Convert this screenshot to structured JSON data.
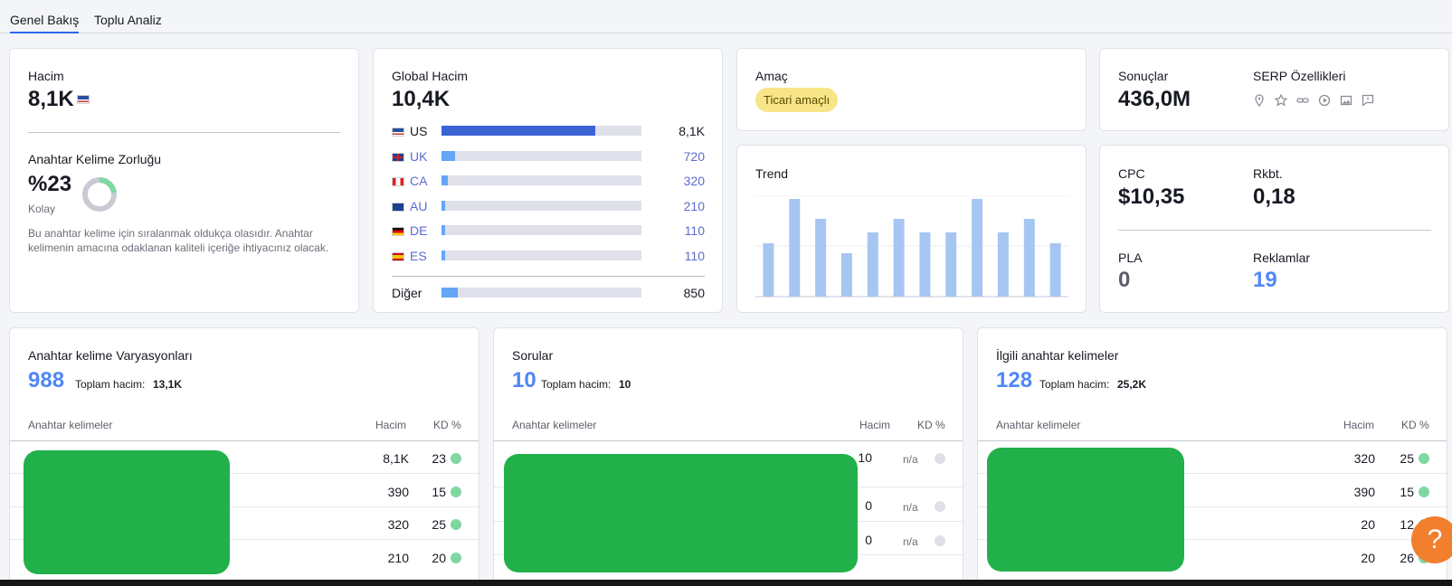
{
  "tabs": [
    {
      "label": "Genel Bakış"
    },
    {
      "label": "Toplu Analiz"
    }
  ],
  "volume": {
    "label": "Hacim",
    "value": "8,1K",
    "flag": "us-flag-icon"
  },
  "difficulty": {
    "label": "Anahtar Kelime Zorluğu",
    "value": "%23",
    "level": "Kolay",
    "description": "Bu anahtar kelime için sıralanmak oldukça olasıdır. Anahtar kelimenin amacına odaklanan kaliteli içeriğe ihtiyacınız olacak.",
    "percent": 23
  },
  "global": {
    "label": "Global Hacim",
    "value": "10,4K",
    "countries": [
      {
        "code": "US",
        "value": "8,1K",
        "share": 0.77
      },
      {
        "code": "UK",
        "value": "720",
        "share": 0.07
      },
      {
        "code": "CA",
        "value": "320",
        "share": 0.03
      },
      {
        "code": "AU",
        "value": "210",
        "share": 0.02
      },
      {
        "code": "DE",
        "value": "110",
        "share": 0.01
      },
      {
        "code": "ES",
        "value": "110",
        "share": 0.01
      }
    ],
    "other": {
      "label": "Diğer",
      "value": "850",
      "share": 0.08
    }
  },
  "intent": {
    "label": "Amaç",
    "badge": "Ticari amaçlı"
  },
  "trend": {
    "label": "Trend",
    "values": [
      0.55,
      1.0,
      0.8,
      0.44,
      0.66,
      0.8,
      0.66,
      0.66,
      1.0,
      0.66,
      0.8,
      0.55
    ]
  },
  "results": {
    "label": "Sonuçlar",
    "value": "436,0M",
    "serp_label": "SERP Özellikleri",
    "serp_icons": [
      "location-icon",
      "star-icon",
      "link-icon",
      "video-icon",
      "image-icon",
      "review-icon"
    ]
  },
  "metrics": {
    "cpc_label": "CPC",
    "cpc": "$10,35",
    "com_label": "Rkbt.",
    "com": "0,18",
    "pla_label": "PLA",
    "pla": "0",
    "ads_label": "Reklamlar",
    "ads": "19"
  },
  "variations": {
    "title": "Anahtar kelime Varyasyonları",
    "count": "988",
    "total_label": "Toplam hacim:",
    "total": "13,1K",
    "col_kw": "Anahtar kelimeler",
    "col_vol": "Hacim",
    "col_kd": "KD %",
    "rows": [
      {
        "vol": "8,1K",
        "kd": "23"
      },
      {
        "vol": "390",
        "kd": "15"
      },
      {
        "vol": "320",
        "kd": "25"
      },
      {
        "vol": "210",
        "kd": "20"
      }
    ]
  },
  "questions": {
    "title": "Sorular",
    "count": "10",
    "total_label": "Toplam hacim:",
    "total": "10",
    "col_kw": "Anahtar kelimeler",
    "col_vol": "Hacim",
    "col_kd": "KD %",
    "rows": [
      {
        "vol": "10",
        "kd": "n/a"
      },
      {
        "vol": "0",
        "kd": "n/a"
      },
      {
        "vol": "0",
        "kd": "n/a"
      }
    ]
  },
  "related": {
    "title": "İlgili anahtar kelimeler",
    "count": "128",
    "total_label": "Toplam hacim:",
    "total": "25,2K",
    "col_kw": "Anahtar kelimeler",
    "col_vol": "Hacim",
    "col_kd": "KD %",
    "rows": [
      {
        "vol": "320",
        "kd": "25"
      },
      {
        "vol": "390",
        "kd": "15"
      },
      {
        "vol": "20",
        "kd": "12"
      },
      {
        "vol": "20",
        "kd": "26"
      }
    ]
  },
  "help": {
    "label": "?"
  }
}
